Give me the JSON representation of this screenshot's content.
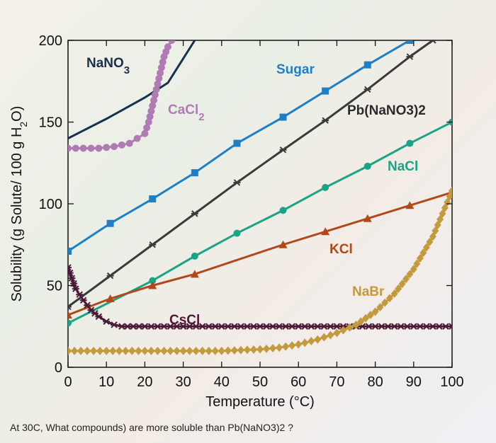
{
  "chart_data": {
    "type": "line",
    "xlabel": "Temperature (°C)",
    "ylabel": "Solubility (g Solute/ 100 g H2O)",
    "xlim": [
      0,
      100
    ],
    "ylim": [
      0,
      200
    ],
    "xticks": [
      0,
      10,
      20,
      30,
      40,
      50,
      60,
      70,
      80,
      90,
      100
    ],
    "yticks": [
      0,
      50,
      100,
      150,
      200
    ],
    "grid": false,
    "series": [
      {
        "name": "NaNO3",
        "display": "NaNO",
        "sub": "3",
        "color": "#18304d",
        "marker": "none",
        "x": [
          0,
          10,
          20,
          26,
          33
        ],
        "y": [
          140,
          152,
          165,
          174,
          200
        ]
      },
      {
        "name": "CaCl2",
        "display": "CaCl",
        "sub": "2",
        "color": "#b07ab2",
        "marker": "circle",
        "x": [
          0,
          4,
          8,
          12,
          16,
          18,
          20,
          21,
          22,
          23,
          24,
          25,
          26,
          27
        ],
        "y": [
          134,
          134,
          134,
          135,
          137,
          140,
          143,
          150,
          160,
          170,
          180,
          190,
          196,
          200
        ]
      },
      {
        "name": "Sugar",
        "display": "Sugar",
        "sub": "",
        "color": "#1f7fc6",
        "marker": "square",
        "x": [
          0,
          11,
          22,
          33,
          44,
          56,
          67,
          78,
          89
        ],
        "y": [
          71,
          88,
          103,
          119,
          137,
          153,
          169,
          185,
          200
        ]
      },
      {
        "name": "Pb(NaNO3)2",
        "display": "Pb(NaNO3)2",
        "sub": "",
        "color": "#3a3a3a",
        "marker": "cross",
        "x": [
          0,
          11,
          22,
          33,
          44,
          56,
          67,
          78,
          89,
          95
        ],
        "y": [
          37,
          56,
          75,
          94,
          113,
          133,
          151,
          170,
          190,
          200
        ]
      },
      {
        "name": "NaCl",
        "display": "NaCl",
        "sub": "",
        "color": "#1aa384",
        "marker": "circle",
        "x": [
          0,
          22,
          33,
          44,
          56,
          67,
          78,
          89,
          100
        ],
        "y": [
          27,
          53,
          68,
          82,
          96,
          110,
          123,
          137,
          150
        ]
      },
      {
        "name": "KCl",
        "display": "KCl",
        "sub": "",
        "color": "#b2481a",
        "marker": "triangle",
        "x": [
          0,
          11,
          22,
          33,
          56,
          67,
          78,
          89,
          100
        ],
        "y": [
          32,
          42,
          50,
          57,
          75,
          83,
          91,
          99,
          107
        ]
      },
      {
        "name": "CsCl",
        "display": "CsCl",
        "sub": "",
        "color": "#4b1a38",
        "marker": "cross",
        "x": [
          0,
          2,
          4,
          6,
          8,
          10,
          12,
          14,
          20,
          30,
          40,
          50,
          60,
          70,
          80,
          90,
          100
        ],
        "y": [
          61,
          48,
          41,
          35,
          31,
          28,
          26,
          25,
          25,
          25,
          25,
          25,
          25,
          25,
          25,
          25,
          25
        ]
      },
      {
        "name": "NaBr",
        "display": "NaBr",
        "sub": "",
        "color": "#c39a3e",
        "marker": "diamond",
        "x": [
          0,
          10,
          20,
          30,
          40,
          50,
          55,
          60,
          65,
          70,
          75,
          80,
          85,
          90,
          95,
          100
        ],
        "y": [
          10,
          10,
          10,
          10,
          10,
          11,
          12,
          14,
          17,
          21,
          26,
          34,
          45,
          60,
          80,
          108
        ]
      }
    ]
  },
  "question": "At 30C, What compounds) are more soluble than Pb(NaNO3)2 ?"
}
